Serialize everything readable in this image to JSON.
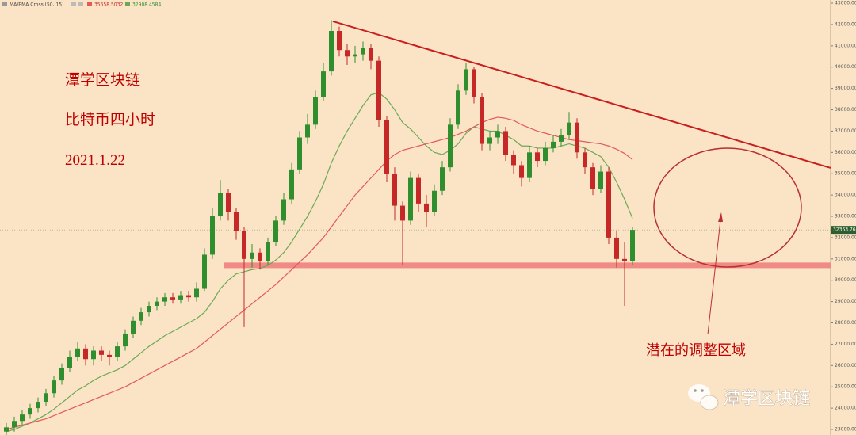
{
  "chart_data": {
    "type": "candlestick",
    "legend_title": "MA/EMA Cross (50, 15)",
    "ylim": [
      22740,
      43150
    ],
    "yticks": [
      {
        "value": 23000,
        "label": "23000.00"
      },
      {
        "value": 24000,
        "label": "24000.00"
      },
      {
        "value": 25000,
        "label": "25000.00"
      },
      {
        "value": 26000,
        "label": "26000.00"
      },
      {
        "value": 27000,
        "label": "27000.00"
      },
      {
        "value": 28000,
        "label": "28000.00"
      },
      {
        "value": 29000,
        "label": "29000.00"
      },
      {
        "value": 30000,
        "label": "30000.00"
      },
      {
        "value": 31000,
        "label": "31000.00"
      },
      {
        "value": 32000,
        "label": "32000.00"
      },
      {
        "value": 33000,
        "label": "33000.00"
      },
      {
        "value": 34000,
        "label": "34000.00"
      },
      {
        "value": 35000,
        "label": "35000.00"
      },
      {
        "value": 36000,
        "label": "36000.00"
      },
      {
        "value": 37000,
        "label": "37000.00"
      },
      {
        "value": 38000,
        "label": "38000.00"
      },
      {
        "value": 39000,
        "label": "39000.00"
      },
      {
        "value": 40000,
        "label": "40000.00"
      },
      {
        "value": 41000,
        "label": "41000.00"
      },
      {
        "value": 42000,
        "label": "42000.00"
      },
      {
        "value": 43000,
        "label": "43000.00"
      }
    ],
    "up_color": "#2f8f2f",
    "down_color": "#c62828",
    "open": [
      22900,
      23100,
      23400,
      23700,
      24000,
      24300,
      24700,
      25300,
      25900,
      26400,
      26800,
      26300,
      26700,
      26500,
      26400,
      26900,
      27500,
      28100,
      28500,
      28800,
      29000,
      29200,
      29100,
      29300,
      29200,
      29600,
      31200,
      33000,
      34100,
      33200,
      32300,
      31000,
      31300,
      30900,
      31800,
      32800,
      33800,
      35200,
      36700,
      37300,
      38600,
      39800,
      41700,
      40800,
      40500,
      40600,
      40900,
      40300,
      37500,
      35000,
      33500,
      32800,
      34800,
      33600,
      33200,
      34200,
      35300,
      37300,
      38900,
      39900,
      38600,
      36400,
      36700,
      37000,
      35900,
      35400,
      34800,
      36000,
      35600,
      36200,
      36500,
      36800,
      37400,
      36000,
      35300,
      34300,
      35100,
      32000,
      31000,
      30900
    ],
    "high": [
      23300,
      23600,
      23900,
      24200,
      24500,
      24900,
      25500,
      26100,
      26700,
      27100,
      27000,
      26900,
      26900,
      26700,
      27100,
      27700,
      28300,
      28700,
      29000,
      29200,
      29400,
      29400,
      29500,
      29500,
      29900,
      31500,
      33400,
      34700,
      34300,
      33400,
      32500,
      31700,
      31500,
      32000,
      33000,
      34100,
      35500,
      37000,
      37800,
      38900,
      40200,
      42200,
      41900,
      41100,
      41000,
      41200,
      41100,
      40500,
      37700,
      35300,
      33700,
      35100,
      35000,
      34000,
      34500,
      35600,
      37600,
      39200,
      40200,
      40000,
      38800,
      37000,
      37300,
      37200,
      36100,
      35600,
      36300,
      36200,
      36500,
      36800,
      37100,
      37900,
      37600,
      36200,
      35500,
      35400,
      35300,
      32300,
      31800,
      32500
    ],
    "low": [
      22700,
      22900,
      23200,
      23500,
      23800,
      24100,
      24500,
      25100,
      25700,
      26200,
      26000,
      26000,
      26200,
      26000,
      26200,
      26700,
      27300,
      27900,
      28300,
      28600,
      28800,
      28900,
      28900,
      29000,
      29000,
      29500,
      31000,
      32800,
      32800,
      31900,
      27800,
      30600,
      30500,
      30700,
      31600,
      32600,
      33600,
      35000,
      36400,
      37100,
      38400,
      39600,
      40500,
      40100,
      40200,
      40300,
      39900,
      37200,
      34600,
      32800,
      30700,
      32600,
      33200,
      32500,
      33000,
      34000,
      35100,
      37100,
      38700,
      38300,
      36100,
      36100,
      36400,
      35600,
      35000,
      34400,
      34600,
      35300,
      35400,
      36000,
      36300,
      36600,
      35700,
      35000,
      34000,
      34100,
      31700,
      30600,
      28800,
      30700
    ],
    "close": [
      23100,
      23400,
      23700,
      24000,
      24300,
      24700,
      25300,
      25900,
      26400,
      26800,
      26300,
      26700,
      26500,
      26400,
      26900,
      27500,
      28100,
      28500,
      28800,
      29000,
      29200,
      29100,
      29300,
      29200,
      29600,
      31200,
      33000,
      34100,
      33200,
      32300,
      31000,
      31300,
      30900,
      31800,
      32800,
      33800,
      35200,
      36700,
      37300,
      38600,
      39800,
      41700,
      40800,
      40500,
      40600,
      40900,
      40300,
      37500,
      35000,
      33500,
      32800,
      34800,
      33600,
      33200,
      34200,
      35300,
      37300,
      38900,
      39900,
      38600,
      36400,
      36700,
      37000,
      35900,
      35400,
      34800,
      36000,
      35600,
      36200,
      36500,
      36800,
      37400,
      36000,
      35300,
      34300,
      35100,
      32000,
      31000,
      30900,
      32363.76
    ],
    "series": [
      {
        "color": "#6aaa55",
        "values": [
          22900,
          23000,
          23150,
          23300,
          23500,
          23700,
          23950,
          24250,
          24550,
          24850,
          25050,
          25300,
          25500,
          25650,
          25800,
          26000,
          26300,
          26600,
          26900,
          27150,
          27400,
          27600,
          27800,
          28000,
          28200,
          28500,
          29000,
          29600,
          30000,
          30300,
          30400,
          30500,
          30550,
          30700,
          30950,
          31300,
          31800,
          32400,
          33000,
          33700,
          34500,
          35500,
          36300,
          37000,
          37600,
          38200,
          38700,
          38800,
          38500,
          38000,
          37400,
          37100,
          36700,
          36300,
          36000,
          35900,
          36100,
          36400,
          36900,
          37200,
          37100,
          37000,
          37000,
          36800,
          36600,
          36300,
          36300,
          36200,
          36200,
          36200,
          36300,
          36400,
          36300,
          36200,
          36000,
          35800,
          35300,
          34600,
          33800,
          32908.4584
        ]
      },
      {
        "color": "#e25a5a",
        "values": [
          23000,
          23100,
          23200,
          23300,
          23400,
          23500,
          23650,
          23800,
          23950,
          24100,
          24250,
          24400,
          24550,
          24700,
          24850,
          25000,
          25200,
          25400,
          25600,
          25800,
          26000,
          26200,
          26400,
          26600,
          26800,
          27100,
          27400,
          27700,
          28000,
          28300,
          28600,
          28900,
          29200,
          29500,
          29800,
          30150,
          30500,
          30850,
          31200,
          31600,
          32000,
          32500,
          33000,
          33500,
          34000,
          34400,
          34800,
          35200,
          35600,
          35900,
          36100,
          36200,
          36300,
          36400,
          36500,
          36600,
          36700,
          36850,
          37000,
          37200,
          37400,
          37550,
          37650,
          37600,
          37500,
          37300,
          37150,
          37000,
          36900,
          36800,
          36700,
          36600,
          36550,
          36500,
          36450,
          36400,
          36300,
          36150,
          35950,
          35658.5032
        ]
      }
    ],
    "trend_line": [
      42150,
      35270
    ],
    "support_level": 30700,
    "annotations": [
      "潭学区块链",
      "比特币四小时",
      "2021.1.22",
      "潜在的调整区域"
    ],
    "watermark": "潭学区块链"
  }
}
